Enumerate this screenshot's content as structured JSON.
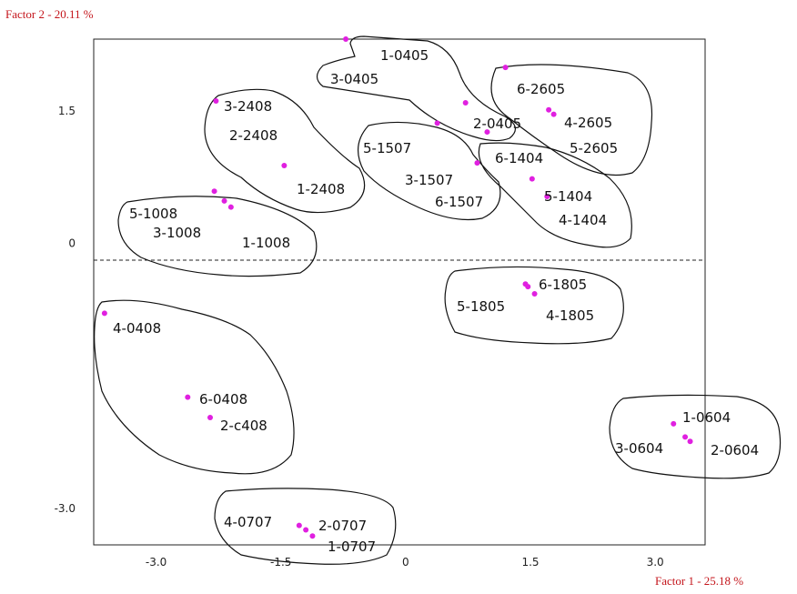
{
  "chart_data": {
    "type": "scatter",
    "xlabel": "Factor 1 - 25.18 %",
    "ylabel": "Factor 2 - 20.11 %",
    "xlim": [
      -3.75,
      3.6
    ],
    "ylim": [
      -3.42,
      2.3
    ],
    "x_ticks": [
      {
        "value": -3.0,
        "label": "-3.0"
      },
      {
        "value": -1.5,
        "label": "-1.5"
      },
      {
        "value": 0.0,
        "label": "0"
      },
      {
        "value": 1.5,
        "label": "1.5"
      },
      {
        "value": 3.0,
        "label": "3.0"
      }
    ],
    "y_ticks": [
      {
        "value": 1.5,
        "label": "1.5"
      },
      {
        "value": 0.0,
        "label": "0"
      },
      {
        "value": -3.0,
        "label": "-3.0"
      }
    ],
    "zero_line": "dashed",
    "point_color": "#e020e0",
    "points": [
      {
        "label": "1-0405",
        "x": -0.72,
        "y": 2.3
      },
      {
        "label": "3-0405",
        "x": null,
        "y": null
      },
      {
        "label": "2-0405",
        "x": 0.72,
        "y": 1.58
      },
      {
        "label": "6-2605",
        "x": 1.2,
        "y": 1.98
      },
      {
        "label": "4-2605",
        "x": 1.72,
        "y": 1.5
      },
      {
        "label": "5-2605",
        "x": 1.78,
        "y": 1.45
      },
      {
        "label": "3-2408",
        "x": null,
        "y": null
      },
      {
        "label": "2-2408",
        "x": -2.28,
        "y": 1.6
      },
      {
        "label": "1-2408",
        "x": -1.46,
        "y": 0.87
      },
      {
        "label": "5-1507",
        "x": 0.38,
        "y": 1.35
      },
      {
        "label": "3-1507",
        "x": null,
        "y": null
      },
      {
        "label": "6-1507",
        "x": 0.86,
        "y": 0.9
      },
      {
        "label": "6-1404",
        "x": 0.98,
        "y": 1.25
      },
      {
        "label": "5-1404",
        "x": 1.52,
        "y": 0.72
      },
      {
        "label": "4-1404",
        "x": 1.7,
        "y": 0.52
      },
      {
        "label": "5-1008",
        "x": -2.3,
        "y": 0.58
      },
      {
        "label": "3-1008",
        "x": -2.18,
        "y": 0.47
      },
      {
        "label": "1-1008",
        "x": -2.1,
        "y": 0.4
      },
      {
        "label": "6-1805",
        "x": 1.44,
        "y": -0.47
      },
      {
        "label": "5-1805",
        "x": 1.47,
        "y": -0.5
      },
      {
        "label": "4-1805",
        "x": 1.55,
        "y": -0.58
      },
      {
        "label": "4-0408",
        "x": -3.62,
        "y": -0.8
      },
      {
        "label": "6-0408",
        "x": -2.62,
        "y": -1.75
      },
      {
        "label": "2-c408",
        "x": -2.35,
        "y": -1.98
      },
      {
        "label": "1-0604",
        "x": 3.22,
        "y": -2.05
      },
      {
        "label": "3-0604",
        "x": 3.36,
        "y": -2.2
      },
      {
        "label": "2-0604",
        "x": 3.42,
        "y": -2.25
      },
      {
        "label": "4-0707",
        "x": -1.28,
        "y": -3.2
      },
      {
        "label": "2-0707",
        "x": -1.2,
        "y": -3.25
      },
      {
        "label": "1-0707",
        "x": -1.12,
        "y": -3.32
      }
    ]
  }
}
